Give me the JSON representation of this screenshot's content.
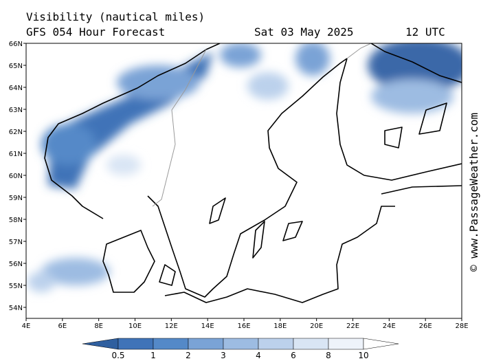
{
  "map": {
    "title": "Visibility (nautical miles)",
    "forecast": "GFS 054 Hour Forecast",
    "date": "Sat 03 May 2025",
    "time": "12 UTC",
    "lat_labels": [
      "66N",
      "65N",
      "64N",
      "63N",
      "62N",
      "61N",
      "60N",
      "59N",
      "58N",
      "57N",
      "56N",
      "55N",
      "54N"
    ],
    "lon_labels": [
      "4E",
      "6E",
      "8E",
      "10E",
      "12E",
      "14E",
      "16E",
      "18E",
      "20E",
      "22E",
      "24E",
      "26E",
      "28E"
    ],
    "colorbar_labels": [
      "0.5",
      "1",
      "2",
      "3",
      "4",
      "6",
      "8",
      "10"
    ],
    "watermark": "© www.PassageWeather.com"
  }
}
